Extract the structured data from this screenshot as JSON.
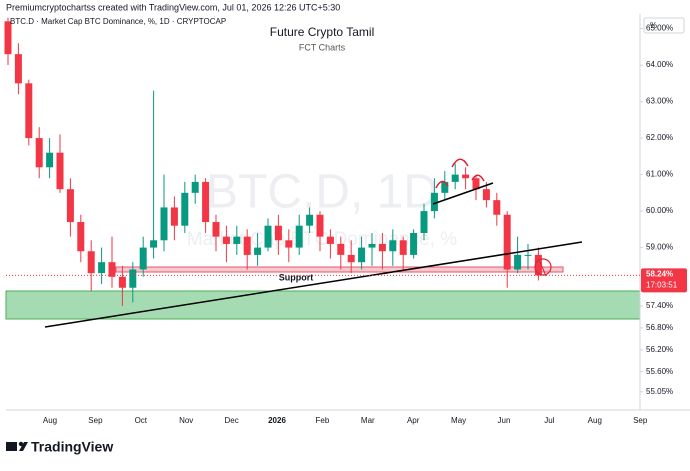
{
  "chart_data": {
    "type": "candlestick",
    "header": "Premiumcryptochartss created with TradingView.com, Jul 01, 2026 12:26 UTC+5:30",
    "symbol": "BTC.D · Market Cap BTC Dominance, %, 1D · CRYPTOCAP",
    "title": "Future Crypto Tamil",
    "subtitle": "FCT Charts",
    "watermark": "BTC.D, 1D",
    "watermark_subtitle": "Market Cap BTC Dominance, %",
    "annotation": "Support",
    "scale_unit": "%",
    "brand": "TradingView",
    "categories": [
      "Aug",
      "Sep",
      "Oct",
      "Nov",
      "Dec",
      "2026",
      "Feb",
      "Mar",
      "Apr",
      "May",
      "Jun",
      "Jul",
      "Aug",
      "Sep"
    ],
    "open": [
      65.2,
      64.3,
      63.5,
      62.0,
      61.2,
      61.6,
      60.6,
      59.7,
      58.9,
      58.3,
      58.6,
      58.2,
      57.9,
      58.4,
      59.0,
      59.2,
      60.1,
      59.6,
      60.5,
      60.8,
      59.7,
      59.3,
      59.1,
      59.3,
      58.8,
      59.0,
      59.6,
      59.2,
      59.0,
      59.6,
      59.9,
      59.3,
      59.1,
      58.8,
      58.6,
      59.0,
      59.1,
      58.9,
      59.2,
      58.8,
      59.4,
      60.0,
      60.5,
      60.8,
      61.0,
      60.9,
      60.6,
      60.3,
      59.9,
      58.4,
      58.8,
      58.8
    ],
    "high": [
      65.3,
      64.6,
      63.6,
      62.3,
      62.0,
      62.1,
      60.9,
      59.9,
      59.2,
      59.0,
      59.3,
      58.5,
      58.6,
      59.3,
      63.3,
      61.0,
      60.4,
      60.8,
      61.0,
      60.9,
      59.9,
      59.6,
      59.6,
      59.5,
      59.4,
      59.8,
      59.9,
      59.5,
      59.9,
      60.1,
      60.0,
      59.5,
      59.3,
      59.2,
      59.3,
      59.4,
      59.4,
      59.5,
      59.3,
      59.5,
      60.2,
      60.9,
      61.1,
      61.3,
      61.2,
      61.0,
      60.8,
      60.5,
      60.0,
      59.3,
      59.1,
      59.0
    ],
    "low": [
      64.0,
      63.2,
      61.8,
      60.9,
      60.9,
      60.5,
      59.3,
      58.6,
      57.8,
      58.0,
      57.9,
      57.4,
      57.5,
      58.2,
      58.7,
      58.9,
      59.2,
      59.4,
      60.2,
      59.4,
      58.9,
      58.6,
      58.8,
      58.4,
      58.5,
      58.9,
      58.8,
      58.6,
      58.8,
      59.4,
      58.9,
      58.7,
      58.4,
      58.3,
      58.4,
      58.5,
      58.4,
      58.5,
      58.4,
      58.7,
      59.2,
      59.8,
      60.3,
      60.6,
      60.6,
      60.3,
      60.1,
      59.6,
      57.9,
      58.3,
      58.4,
      58.1
    ],
    "close": [
      64.3,
      63.5,
      62.0,
      61.2,
      61.6,
      60.6,
      59.7,
      58.9,
      58.3,
      58.6,
      58.2,
      57.9,
      58.4,
      59.0,
      59.2,
      60.1,
      59.6,
      60.5,
      60.8,
      59.7,
      59.3,
      59.1,
      59.3,
      58.8,
      59.0,
      59.6,
      59.2,
      59.0,
      59.6,
      59.9,
      59.3,
      59.1,
      58.8,
      58.6,
      59.0,
      59.1,
      58.9,
      59.2,
      58.8,
      59.4,
      60.0,
      60.5,
      60.8,
      61.0,
      60.9,
      60.6,
      60.3,
      59.9,
      58.4,
      58.8,
      58.8,
      58.24
    ],
    "up_color": "#089981",
    "down_color": "#f23645",
    "last_value": {
      "value": 58.24,
      "label": "58.24%"
    },
    "countdown": "17:03:51",
    "ylim": [
      54.55,
      65.4
    ],
    "yticks": [
      {
        "value": 65,
        "label": "65.00%"
      },
      {
        "value": 64,
        "label": "64.00%"
      },
      {
        "value": 63,
        "label": "63.00%"
      },
      {
        "value": 62,
        "label": "62.00%"
      },
      {
        "value": 61,
        "label": "61.00%"
      },
      {
        "value": 60,
        "label": "60.00%"
      },
      {
        "value": 59,
        "label": "59.00%"
      },
      {
        "value": 57.4,
        "label": "57.40%"
      },
      {
        "value": 56.8,
        "label": "56.80%"
      },
      {
        "value": 56.2,
        "label": "56.20%"
      },
      {
        "value": 55.6,
        "label": "55.60%"
      },
      {
        "value": 55.05,
        "label": "55.05%"
      }
    ]
  }
}
